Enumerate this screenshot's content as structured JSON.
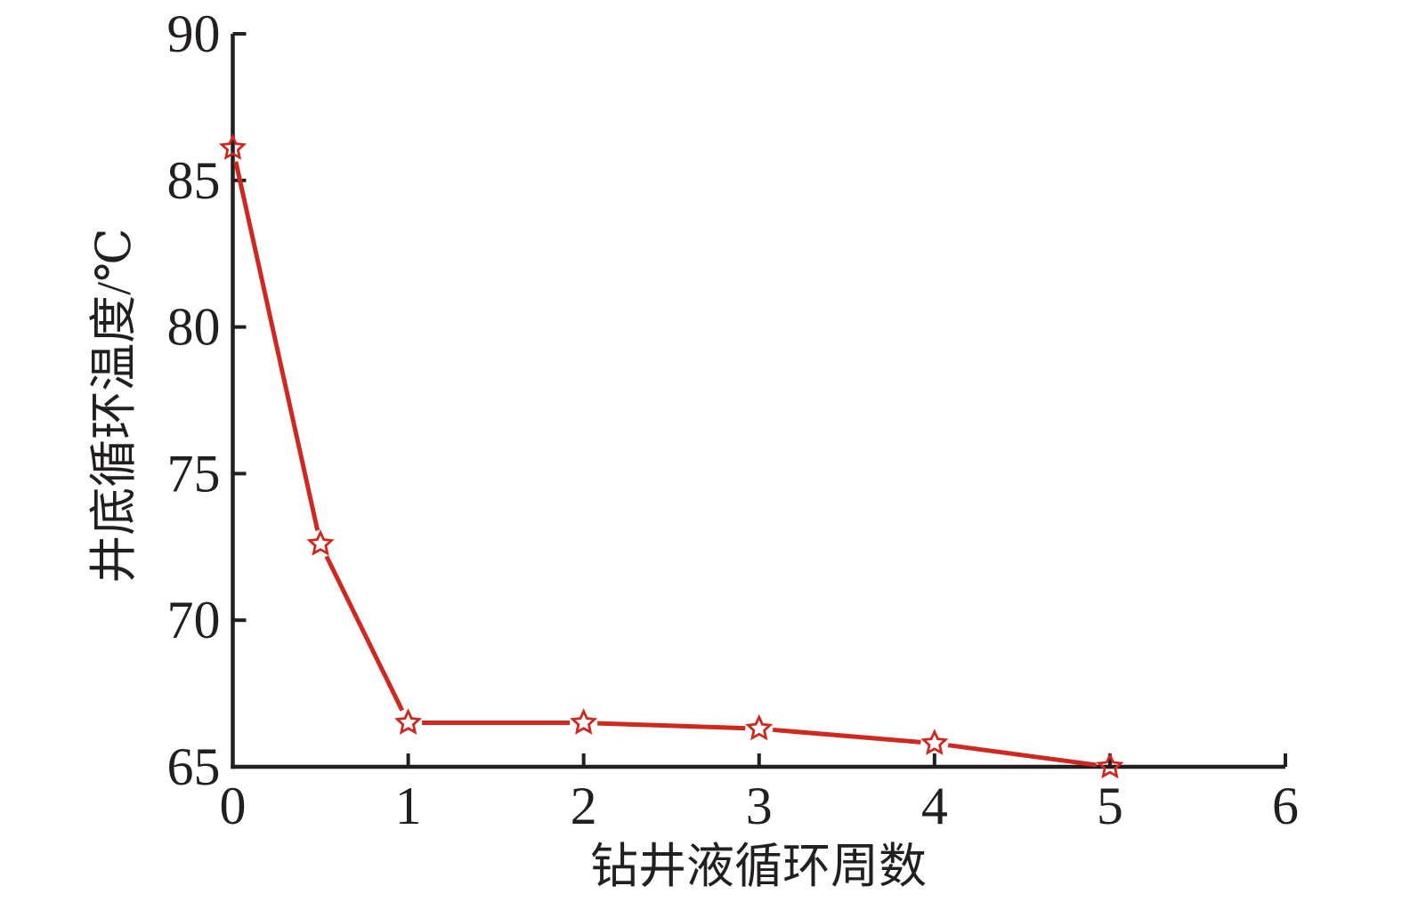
{
  "figure": {
    "background": "#ffffff"
  },
  "chart_data": {
    "type": "line",
    "title": "",
    "xlabel": "钻井液循环周数",
    "ylabel": "井底循环温度/℃",
    "x": [
      0,
      0.5,
      1,
      2,
      3,
      4,
      5
    ],
    "series": [
      {
        "name": "井底循环温度",
        "values": [
          86.1,
          72.6,
          66.5,
          66.5,
          66.3,
          65.8,
          65.0
        ]
      }
    ],
    "xlim": [
      0,
      6
    ],
    "ylim": [
      65,
      90
    ],
    "xticks": [
      0,
      1,
      2,
      3,
      4,
      5,
      6
    ],
    "yticks": [
      65,
      70,
      75,
      80,
      85,
      90
    ],
    "grid": false,
    "legend": "none",
    "tick_direction": "in",
    "line_color": "#d0281e",
    "marker": "open-star",
    "marker_color": "#d0281e",
    "axis_color": "#231f20",
    "text_color": "#231f20"
  }
}
